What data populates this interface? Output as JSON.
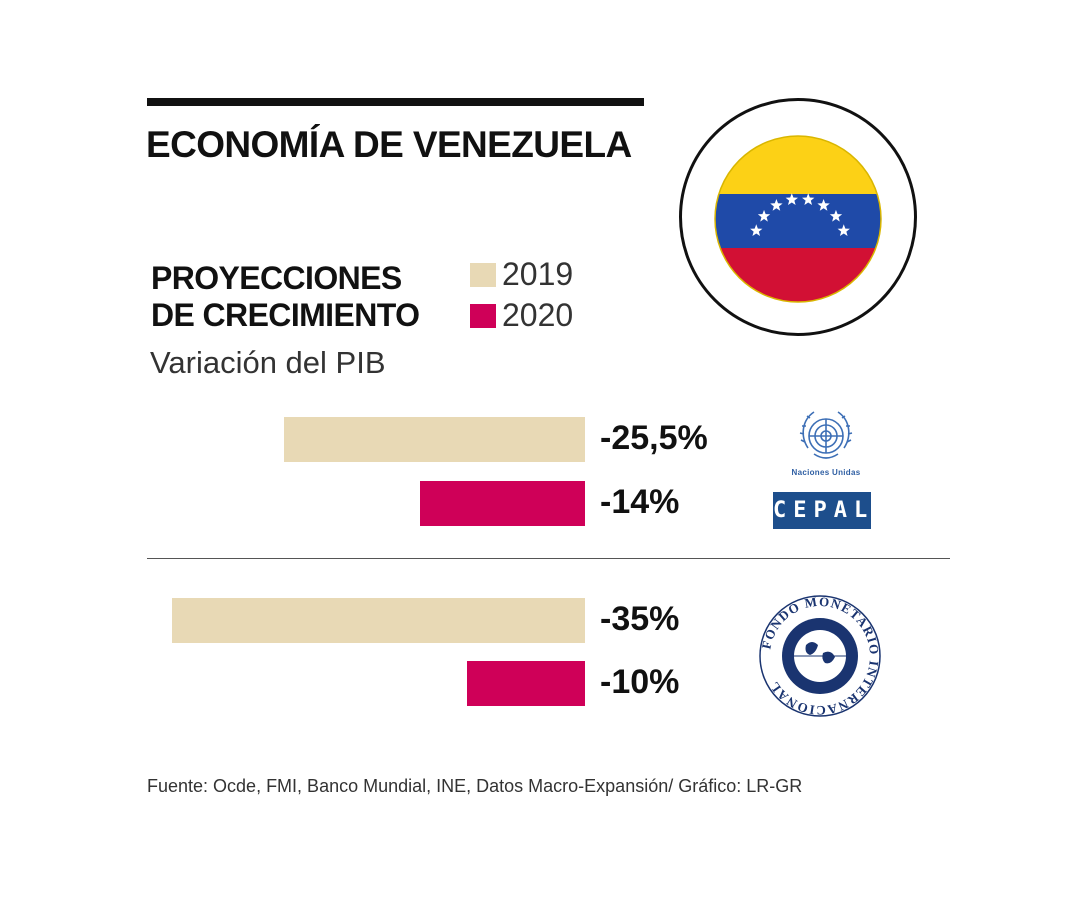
{
  "title": "ECONOMÍA DE VENEZUELA",
  "subtitle_line1": "PROYECCIONES",
  "subtitle_line2": "DE CRECIMIENTO",
  "unit_label": "Variación del PIB",
  "legend": [
    {
      "label": "2019",
      "color": "#e8d9b5"
    },
    {
      "label": "2020",
      "color": "#cf0058"
    }
  ],
  "chart_data": {
    "type": "bar",
    "orientation": "horizontal",
    "title": "PROYECCIONES DE CRECIMIENTO",
    "subtitle": "Variación del PIB",
    "groups": [
      {
        "source": "Naciones Unidas / CEPAL",
        "values": [
          {
            "series": "2019",
            "value": -25.5,
            "label": "-25,5%"
          },
          {
            "series": "2020",
            "value": -14,
            "label": "-14%"
          }
        ]
      },
      {
        "source": "Fondo Monetario Internacional",
        "values": [
          {
            "series": "2019",
            "value": -35,
            "label": "-35%"
          },
          {
            "series": "2020",
            "value": -10,
            "label": "-10%"
          }
        ]
      }
    ],
    "series": [
      {
        "name": "2019",
        "values": [
          -25.5,
          -35
        ]
      },
      {
        "name": "2020",
        "values": [
          -14,
          -10
        ]
      }
    ]
  },
  "logos": {
    "un_caption": "Naciones Unidas",
    "cepal_text": "CEPAL",
    "imf_text": "FONDO MONETARIO INTERNACIONAL"
  },
  "flag": {
    "colors": [
      "#fcd116",
      "#1f4aa8",
      "#d21034"
    ]
  },
  "source": "Fuente: Ocde, FMI, Banco Mundial, INE, Datos Macro-Expansión/ Gráfico: LR-GR"
}
